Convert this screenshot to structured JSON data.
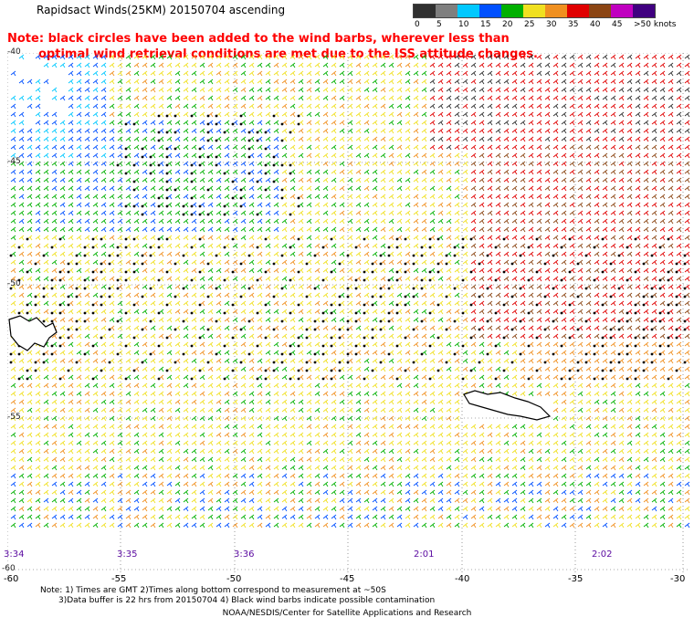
{
  "title": "Rapidsact Winds(25KM) 20150704 ascending",
  "note": {
    "line1": "Note: black circles have been added to the wind barbs, wherever less than",
    "line2": "optimal wind retrieval conditions are met due to the ISS attitude changes."
  },
  "legend": {
    "labels": [
      "0",
      "5",
      "10",
      "15",
      "20",
      "25",
      "30",
      "35",
      "40",
      "45",
      ">50 knots"
    ],
    "colors": [
      "#303030",
      "#7f7f7f",
      "#00c8ff",
      "#0050ff",
      "#00b000",
      "#f0e020",
      "#f09020",
      "#e00000",
      "#8b4513",
      "#c000c0",
      "#400080"
    ]
  },
  "lat_labels": [
    "-40",
    "-45",
    "-50",
    "-55"
  ],
  "lon_labels": [
    "-60",
    "-55",
    "-50",
    "-45",
    "-40",
    "-35",
    "-30"
  ],
  "bottom_lat_label": "-60",
  "times": [
    "3:34",
    "3:35",
    "3:36",
    "2:01",
    "2:02"
  ],
  "footer": {
    "line1": "Note: 1) Times are GMT 2)Times along bottom correspond to measurement at ~50S",
    "line2": "3)Data buffer is 22 hrs from 20150704 4) Black wind barbs indicate possible contamination",
    "line3": "NOAA/NESDIS/Center for Satellite Applications and Research"
  },
  "colors": {
    "note": "#ff0000",
    "time": "#5a0aa0"
  }
}
